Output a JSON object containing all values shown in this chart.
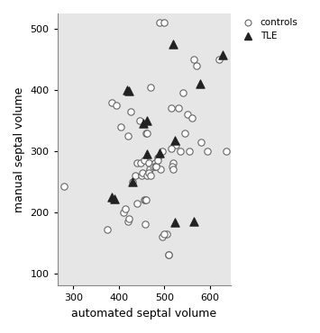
{
  "controls_x": [
    280,
    375,
    385,
    395,
    405,
    410,
    415,
    420,
    425,
    430,
    435,
    440,
    440,
    445,
    448,
    450,
    452,
    455,
    458,
    460,
    462,
    465,
    468,
    470,
    475,
    480,
    482,
    485,
    490,
    492,
    495,
    500,
    505,
    510,
    515,
    520,
    525,
    530,
    535,
    540,
    545,
    550,
    555,
    560,
    565,
    570,
    580,
    595,
    620,
    635
  ],
  "controls_y": [
    242,
    172,
    380,
    375,
    340,
    200,
    205,
    325,
    365,
    250,
    260,
    280,
    215,
    350,
    280,
    260,
    265,
    285,
    180,
    330,
    330,
    280,
    270,
    405,
    275,
    280,
    277,
    290,
    510,
    270,
    300,
    510,
    165,
    130,
    370,
    280,
    310,
    370,
    300,
    395,
    330,
    360,
    300,
    355,
    450,
    440,
    315,
    300,
    450,
    300
  ],
  "controls_x2": [
    420,
    422,
    455,
    458,
    460,
    462,
    465,
    470,
    480,
    482,
    485,
    495,
    500,
    510,
    515,
    518,
    520
  ],
  "controls_y2": [
    185,
    190,
    220,
    220,
    220,
    260,
    265,
    260,
    275,
    275,
    285,
    160,
    165,
    130,
    305,
    275,
    270
  ],
  "tle_x": [
    385,
    390,
    418,
    422,
    430,
    453,
    462,
    462,
    490,
    520,
    523,
    523,
    565,
    578,
    628
  ],
  "tle_y": [
    225,
    222,
    400,
    398,
    250,
    345,
    350,
    295,
    297,
    475,
    318,
    183,
    185,
    410,
    458
  ],
  "xlabel": "automated septal volume",
  "ylabel": "manual septal volume",
  "xlim": [
    265,
    645
  ],
  "ylim": [
    80,
    525
  ],
  "xticks": [
    300,
    400,
    500,
    600
  ],
  "yticks": [
    100,
    200,
    300,
    400,
    500
  ],
  "legend_labels": [
    "controls",
    "TLE"
  ],
  "bg_color": "#e6e6e6",
  "marker_face_circle": "white",
  "marker_edge_circle": "#666666",
  "marker_face_triangle": "#222222",
  "marker_edge_triangle": "#222222",
  "circle_size": 28,
  "triangle_size": 45,
  "circle_lw": 0.8,
  "triangle_lw": 0.8
}
